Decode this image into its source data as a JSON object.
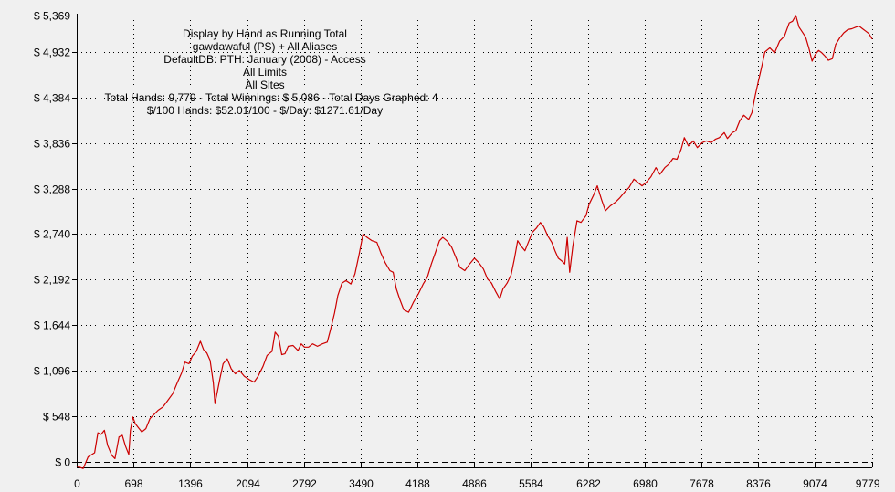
{
  "chart_data": {
    "type": "line",
    "title_lines": [
      "Display by Hand as Running Total",
      "gawdawaful (PS) + All Aliases",
      "DefaultDB: PTH: January (2008) - Access",
      "All Limits",
      "All Sites",
      "Total Hands: 9,779 - Total Winnings: $ 5,086 - Total Days Graphed: 4",
      "$/100 Hands: $52.01/100 - $/Day: $1271.61/Day"
    ],
    "xlabel": "",
    "ylabel": "",
    "xlim": [
      0,
      9779
    ],
    "ylim": [
      0,
      5369
    ],
    "x_ticks": [
      0,
      698,
      1396,
      2094,
      2792,
      3490,
      4188,
      4886,
      5584,
      6282,
      6980,
      7678,
      8376,
      9074,
      9779
    ],
    "x_tick_labels": [
      "0",
      "698",
      "1396",
      "2094",
      "2792",
      "3490",
      "4188",
      "4886",
      "5584",
      "6282",
      "6980",
      "7678",
      "8376",
      "9074",
      "9779"
    ],
    "y_ticks": [
      0,
      548,
      1096,
      1644,
      2192,
      2740,
      3288,
      3836,
      4384,
      4932,
      5369
    ],
    "y_tick_labels": [
      "$ 0",
      "$ 548",
      "$ 1,096",
      "$ 1,644",
      "$ 2,192",
      "$ 2,740",
      "$ 3,288",
      "$ 3,836",
      "$ 4,384",
      "$ 4,932",
      "$ 5,369"
    ],
    "grid": true,
    "line_color": "#cc0000",
    "series": [
      {
        "name": "",
        "points": [
          [
            0,
            -50
          ],
          [
            80,
            -80
          ],
          [
            140,
            60
          ],
          [
            220,
            110
          ],
          [
            260,
            350
          ],
          [
            300,
            330
          ],
          [
            340,
            380
          ],
          [
            380,
            200
          ],
          [
            430,
            80
          ],
          [
            470,
            40
          ],
          [
            520,
            300
          ],
          [
            560,
            320
          ],
          [
            600,
            190
          ],
          [
            640,
            90
          ],
          [
            660,
            380
          ],
          [
            690,
            540
          ],
          [
            720,
            460
          ],
          [
            760,
            410
          ],
          [
            800,
            360
          ],
          [
            850,
            400
          ],
          [
            900,
            520
          ],
          [
            960,
            580
          ],
          [
            1000,
            620
          ],
          [
            1060,
            660
          ],
          [
            1120,
            740
          ],
          [
            1180,
            820
          ],
          [
            1240,
            960
          ],
          [
            1290,
            1070
          ],
          [
            1330,
            1200
          ],
          [
            1380,
            1180
          ],
          [
            1420,
            1270
          ],
          [
            1470,
            1330
          ],
          [
            1520,
            1450
          ],
          [
            1560,
            1350
          ],
          [
            1600,
            1310
          ],
          [
            1640,
            1220
          ],
          [
            1680,
            950
          ],
          [
            1700,
            700
          ],
          [
            1730,
            850
          ],
          [
            1760,
            1000
          ],
          [
            1800,
            1180
          ],
          [
            1850,
            1240
          ],
          [
            1900,
            1120
          ],
          [
            1950,
            1060
          ],
          [
            2000,
            1100
          ],
          [
            2060,
            1030
          ],
          [
            2120,
            990
          ],
          [
            2180,
            960
          ],
          [
            2230,
            1030
          ],
          [
            2290,
            1150
          ],
          [
            2340,
            1280
          ],
          [
            2400,
            1330
          ],
          [
            2440,
            1560
          ],
          [
            2480,
            1510
          ],
          [
            2520,
            1290
          ],
          [
            2560,
            1300
          ],
          [
            2600,
            1390
          ],
          [
            2660,
            1400
          ],
          [
            2720,
            1340
          ],
          [
            2760,
            1420
          ],
          [
            2800,
            1380
          ],
          [
            2850,
            1380
          ],
          [
            2900,
            1420
          ],
          [
            2960,
            1390
          ],
          [
            3020,
            1420
          ],
          [
            3080,
            1440
          ],
          [
            3120,
            1590
          ],
          [
            3170,
            1790
          ],
          [
            3210,
            2000
          ],
          [
            3260,
            2150
          ],
          [
            3310,
            2180
          ],
          [
            3370,
            2140
          ],
          [
            3420,
            2260
          ],
          [
            3470,
            2490
          ],
          [
            3520,
            2740
          ],
          [
            3570,
            2700
          ],
          [
            3630,
            2660
          ],
          [
            3690,
            2640
          ],
          [
            3740,
            2510
          ],
          [
            3790,
            2400
          ],
          [
            3850,
            2300
          ],
          [
            3890,
            2280
          ],
          [
            3930,
            2080
          ],
          [
            3970,
            1960
          ],
          [
            4020,
            1830
          ],
          [
            4080,
            1800
          ],
          [
            4140,
            1920
          ],
          [
            4200,
            2020
          ],
          [
            4260,
            2140
          ],
          [
            4310,
            2220
          ],
          [
            4360,
            2380
          ],
          [
            4410,
            2520
          ],
          [
            4460,
            2660
          ],
          [
            4500,
            2700
          ],
          [
            4560,
            2650
          ],
          [
            4610,
            2580
          ],
          [
            4660,
            2460
          ],
          [
            4710,
            2340
          ],
          [
            4770,
            2300
          ],
          [
            4830,
            2380
          ],
          [
            4890,
            2450
          ],
          [
            4940,
            2400
          ],
          [
            5000,
            2320
          ],
          [
            5050,
            2200
          ],
          [
            5100,
            2150
          ],
          [
            5150,
            2050
          ],
          [
            5200,
            1960
          ],
          [
            5240,
            2080
          ],
          [
            5290,
            2150
          ],
          [
            5340,
            2250
          ],
          [
            5380,
            2440
          ],
          [
            5420,
            2660
          ],
          [
            5460,
            2600
          ],
          [
            5510,
            2540
          ],
          [
            5560,
            2660
          ],
          [
            5600,
            2760
          ],
          [
            5650,
            2810
          ],
          [
            5700,
            2880
          ],
          [
            5740,
            2830
          ],
          [
            5790,
            2720
          ],
          [
            5840,
            2640
          ],
          [
            5880,
            2540
          ],
          [
            5920,
            2450
          ],
          [
            5960,
            2420
          ],
          [
            6000,
            2380
          ],
          [
            6030,
            2700
          ],
          [
            6060,
            2280
          ],
          [
            6100,
            2600
          ],
          [
            6150,
            2900
          ],
          [
            6200,
            2880
          ],
          [
            6260,
            2960
          ],
          [
            6300,
            3100
          ],
          [
            6350,
            3200
          ],
          [
            6400,
            3320
          ],
          [
            6450,
            3160
          ],
          [
            6500,
            3020
          ],
          [
            6560,
            3080
          ],
          [
            6620,
            3120
          ],
          [
            6680,
            3180
          ],
          [
            6740,
            3250
          ],
          [
            6790,
            3300
          ],
          [
            6850,
            3400
          ],
          [
            6900,
            3360
          ],
          [
            6950,
            3320
          ],
          [
            7000,
            3360
          ],
          [
            7060,
            3430
          ],
          [
            7120,
            3540
          ],
          [
            7170,
            3460
          ],
          [
            7230,
            3540
          ],
          [
            7280,
            3580
          ],
          [
            7330,
            3650
          ],
          [
            7380,
            3640
          ],
          [
            7430,
            3760
          ],
          [
            7470,
            3900
          ],
          [
            7520,
            3800
          ],
          [
            7580,
            3860
          ],
          [
            7630,
            3780
          ],
          [
            7690,
            3840
          ],
          [
            7740,
            3860
          ],
          [
            7800,
            3840
          ],
          [
            7850,
            3880
          ],
          [
            7900,
            3900
          ],
          [
            7960,
            3960
          ],
          [
            8000,
            3890
          ],
          [
            8060,
            3960
          ],
          [
            8100,
            3980
          ],
          [
            8150,
            4100
          ],
          [
            8200,
            4170
          ],
          [
            8260,
            4120
          ],
          [
            8300,
            4200
          ],
          [
            8340,
            4400
          ],
          [
            8380,
            4580
          ],
          [
            8420,
            4750
          ],
          [
            8460,
            4930
          ],
          [
            8520,
            4980
          ],
          [
            8580,
            4920
          ],
          [
            8640,
            5060
          ],
          [
            8700,
            5120
          ],
          [
            8760,
            5280
          ],
          [
            8800,
            5300
          ],
          [
            8840,
            5369
          ],
          [
            8880,
            5230
          ],
          [
            8920,
            5170
          ],
          [
            8960,
            5110
          ],
          [
            9000,
            4980
          ],
          [
            9040,
            4820
          ],
          [
            9080,
            4900
          ],
          [
            9120,
            4950
          ],
          [
            9160,
            4920
          ],
          [
            9200,
            4880
          ],
          [
            9240,
            4830
          ],
          [
            9290,
            4850
          ],
          [
            9330,
            5020
          ],
          [
            9380,
            5100
          ],
          [
            9430,
            5160
          ],
          [
            9480,
            5200
          ],
          [
            9530,
            5210
          ],
          [
            9580,
            5230
          ],
          [
            9620,
            5240
          ],
          [
            9660,
            5210
          ],
          [
            9700,
            5180
          ],
          [
            9740,
            5150
          ],
          [
            9779,
            5086
          ]
        ]
      }
    ]
  }
}
